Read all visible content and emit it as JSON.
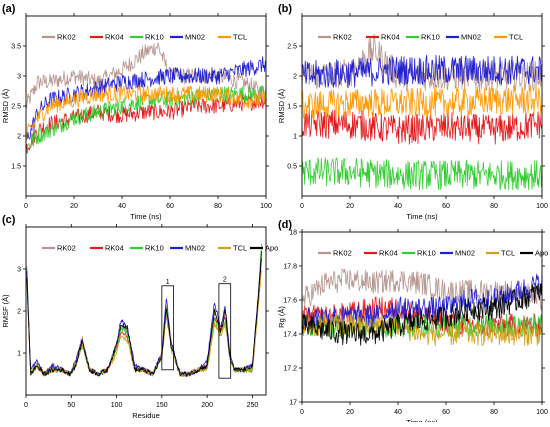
{
  "chart_data": [
    {
      "panel_label": "(a)",
      "type": "line",
      "title": "",
      "xlabel": "Time (ns)",
      "ylabel": "RMSD (Å)",
      "xlim": [
        0,
        100
      ],
      "ylim": [
        1,
        4
      ],
      "xticks": [
        0,
        20,
        40,
        60,
        80,
        100
      ],
      "xtick_labels": [
        "0",
        "20",
        "40",
        "60",
        "80",
        "100"
      ],
      "yticks": [
        1.5,
        2,
        2.5,
        3,
        3.5
      ],
      "ytick_labels": [
        "1.5",
        "2",
        "2.5",
        "3",
        "3.5"
      ],
      "legend_position": "top",
      "noise": 0.14,
      "series": [
        {
          "name": "RK02",
          "color": "#b5958f",
          "x": [
            0,
            5,
            10,
            20,
            30,
            40,
            50,
            55,
            60,
            70,
            80,
            90,
            100
          ],
          "values": [
            2.5,
            2.9,
            2.9,
            3.0,
            2.9,
            3.1,
            3.4,
            3.5,
            3.0,
            3.0,
            3.0,
            2.9,
            2.7
          ]
        },
        {
          "name": "RK04",
          "color": "#e31a1c",
          "x": [
            0,
            5,
            10,
            20,
            30,
            40,
            50,
            60,
            70,
            80,
            90,
            100
          ],
          "values": [
            1.8,
            2.1,
            2.2,
            2.3,
            2.4,
            2.35,
            2.4,
            2.4,
            2.5,
            2.5,
            2.55,
            2.6
          ]
        },
        {
          "name": "RK10",
          "color": "#33cc33",
          "x": [
            0,
            5,
            10,
            20,
            30,
            40,
            50,
            60,
            70,
            80,
            90,
            100
          ],
          "values": [
            1.8,
            2.0,
            2.1,
            2.3,
            2.4,
            2.5,
            2.6,
            2.6,
            2.65,
            2.7,
            2.7,
            2.7
          ]
        },
        {
          "name": "MN02",
          "color": "#1f1fd6",
          "x": [
            0,
            5,
            10,
            20,
            30,
            40,
            50,
            60,
            70,
            80,
            90,
            100
          ],
          "values": [
            1.9,
            2.4,
            2.6,
            2.7,
            2.8,
            2.9,
            2.95,
            3.0,
            3.0,
            3.0,
            3.1,
            3.2
          ]
        },
        {
          "name": "TCL",
          "color": "#ff9900",
          "x": [
            0,
            5,
            10,
            20,
            30,
            40,
            50,
            60,
            70,
            80,
            90,
            100
          ],
          "values": [
            2.0,
            2.3,
            2.5,
            2.6,
            2.7,
            2.7,
            2.7,
            2.7,
            2.7,
            2.7,
            2.6,
            2.6
          ]
        }
      ]
    },
    {
      "panel_label": "(b)",
      "type": "line",
      "title": "",
      "xlabel": "Time (ns)",
      "ylabel": "RMSD (Å)",
      "xlim": [
        0,
        100
      ],
      "ylim": [
        0,
        3
      ],
      "xticks": [
        0,
        20,
        40,
        60,
        80,
        100
      ],
      "xtick_labels": [
        "0",
        "20",
        "40",
        "60",
        "80",
        "100"
      ],
      "yticks": [
        0.5,
        1,
        1.5,
        2,
        2.5
      ],
      "ytick_labels": [
        "0.5",
        "1",
        "1.5",
        "2",
        "2.5"
      ],
      "legend_position": "top",
      "noise": 0.25,
      "series": [
        {
          "name": "RK02",
          "color": "#b5958f",
          "x": [
            0,
            20,
            30,
            40,
            50,
            60,
            80,
            100
          ],
          "values": [
            2.0,
            2.05,
            2.45,
            2.0,
            2.0,
            2.0,
            2.0,
            2.0
          ]
        },
        {
          "name": "RK04",
          "color": "#e31a1c",
          "x": [
            0,
            20,
            40,
            60,
            80,
            100
          ],
          "values": [
            1.2,
            1.2,
            1.1,
            1.15,
            1.1,
            1.2
          ]
        },
        {
          "name": "RK10",
          "color": "#33cc33",
          "x": [
            0,
            20,
            40,
            60,
            80,
            100
          ],
          "values": [
            0.4,
            0.4,
            0.35,
            0.35,
            0.35,
            0.35
          ]
        },
        {
          "name": "MN02",
          "color": "#1f1fd6",
          "x": [
            0,
            20,
            40,
            60,
            80,
            100
          ],
          "values": [
            2.0,
            2.05,
            2.1,
            2.1,
            2.1,
            2.1
          ]
        },
        {
          "name": "TCL",
          "color": "#ff9900",
          "x": [
            0,
            20,
            40,
            60,
            80,
            100
          ],
          "values": [
            1.5,
            1.55,
            1.55,
            1.55,
            1.6,
            1.6
          ]
        }
      ]
    },
    {
      "panel_label": "(c)",
      "type": "line",
      "title": "",
      "xlabel": "Residue",
      "ylabel": "RMSF (Å)",
      "xlim": [
        0,
        265
      ],
      "ylim": [
        0,
        4
      ],
      "xticks": [
        0,
        50,
        100,
        150,
        200,
        250
      ],
      "xtick_labels": [
        "0",
        "50",
        "100",
        "150",
        "200",
        "250"
      ],
      "yticks": [
        1,
        2,
        3
      ],
      "ytick_labels": [
        "1",
        "2",
        "3"
      ],
      "legend_position": "top",
      "noise": 0.06,
      "annotations": [
        "1",
        "2"
      ],
      "series": [
        {
          "name": "RK02",
          "color": "#b5958f",
          "x": [
            1,
            5,
            12,
            20,
            30,
            40,
            48,
            55,
            62,
            70,
            80,
            90,
            100,
            105,
            112,
            120,
            130,
            140,
            150,
            155,
            160,
            170,
            180,
            190,
            200,
            208,
            215,
            220,
            225,
            230,
            240,
            250,
            255,
            260
          ],
          "values": [
            3.0,
            0.6,
            0.8,
            0.5,
            0.7,
            0.6,
            0.5,
            0.8,
            1.4,
            0.6,
            0.5,
            0.6,
            1.2,
            1.6,
            1.5,
            0.7,
            0.6,
            0.5,
            1.0,
            2.2,
            1.3,
            0.5,
            0.5,
            0.6,
            0.7,
            2.0,
            1.6,
            2.1,
            1.0,
            0.6,
            0.6,
            0.7,
            2.0,
            3.4
          ]
        },
        {
          "name": "RK04",
          "color": "#e31a1c",
          "x": [
            1,
            5,
            12,
            20,
            30,
            40,
            48,
            55,
            62,
            70,
            80,
            90,
            100,
            105,
            112,
            120,
            130,
            140,
            150,
            155,
            160,
            170,
            180,
            190,
            200,
            208,
            215,
            220,
            225,
            230,
            240,
            250,
            255,
            260
          ],
          "values": [
            2.8,
            0.5,
            0.7,
            0.5,
            0.6,
            0.6,
            0.5,
            0.7,
            1.3,
            0.6,
            0.5,
            0.6,
            1.1,
            1.5,
            1.4,
            0.6,
            0.6,
            0.5,
            0.9,
            2.0,
            1.2,
            0.5,
            0.5,
            0.6,
            0.7,
            1.9,
            1.5,
            1.9,
            0.9,
            0.6,
            0.6,
            0.6,
            1.8,
            3.2
          ]
        },
        {
          "name": "RK10",
          "color": "#33cc33",
          "x": [
            1,
            5,
            12,
            20,
            30,
            40,
            48,
            55,
            62,
            70,
            80,
            90,
            100,
            105,
            112,
            120,
            130,
            140,
            150,
            155,
            160,
            170,
            180,
            190,
            200,
            208,
            215,
            220,
            225,
            230,
            240,
            250,
            255,
            260
          ],
          "values": [
            3.0,
            0.5,
            0.7,
            0.5,
            0.6,
            0.6,
            0.5,
            0.7,
            1.2,
            0.6,
            0.5,
            0.6,
            1.1,
            1.6,
            1.5,
            0.6,
            0.6,
            0.5,
            0.9,
            2.0,
            1.2,
            0.5,
            0.5,
            0.6,
            0.6,
            1.8,
            1.4,
            1.8,
            0.9,
            0.6,
            0.6,
            0.6,
            1.9,
            3.6
          ]
        },
        {
          "name": "MN02",
          "color": "#1f1fd6",
          "x": [
            1,
            5,
            12,
            20,
            30,
            40,
            48,
            55,
            62,
            70,
            80,
            90,
            100,
            105,
            112,
            120,
            130,
            140,
            150,
            155,
            160,
            170,
            180,
            190,
            200,
            208,
            215,
            220,
            225,
            230,
            240,
            250,
            255,
            260
          ],
          "values": [
            2.9,
            0.6,
            0.8,
            0.5,
            0.7,
            0.6,
            0.5,
            0.8,
            1.3,
            0.6,
            0.5,
            0.6,
            1.2,
            1.8,
            1.6,
            0.7,
            0.6,
            0.5,
            1.0,
            2.3,
            1.3,
            0.5,
            0.5,
            0.6,
            0.8,
            2.2,
            1.6,
            2.1,
            1.0,
            0.6,
            0.6,
            0.7,
            2.0,
            3.3
          ]
        },
        {
          "name": "TCL",
          "color": "#d4a017",
          "x": [
            1,
            5,
            12,
            20,
            30,
            40,
            48,
            55,
            62,
            70,
            80,
            90,
            100,
            105,
            112,
            120,
            130,
            140,
            150,
            155,
            160,
            170,
            180,
            190,
            200,
            208,
            215,
            220,
            225,
            230,
            240,
            250,
            255,
            260
          ],
          "values": [
            2.7,
            0.5,
            0.7,
            0.5,
            0.6,
            0.6,
            0.5,
            0.7,
            1.2,
            0.6,
            0.5,
            0.6,
            1.0,
            1.4,
            1.3,
            0.6,
            0.6,
            0.5,
            0.9,
            1.9,
            1.1,
            0.5,
            0.5,
            0.6,
            0.6,
            1.7,
            1.4,
            1.7,
            0.9,
            0.6,
            0.6,
            0.6,
            1.7,
            3.0
          ]
        },
        {
          "name": "Apo",
          "color": "#000000",
          "x": [
            1,
            5,
            12,
            20,
            30,
            40,
            48,
            55,
            62,
            70,
            80,
            90,
            100,
            105,
            112,
            120,
            130,
            140,
            150,
            155,
            160,
            170,
            180,
            190,
            200,
            208,
            215,
            220,
            225,
            230,
            240,
            250,
            255,
            260
          ],
          "values": [
            2.8,
            0.5,
            0.7,
            0.5,
            0.6,
            0.6,
            0.5,
            0.7,
            1.3,
            0.6,
            0.5,
            0.6,
            1.2,
            1.7,
            1.6,
            0.6,
            0.6,
            0.5,
            0.9,
            2.1,
            1.2,
            0.5,
            0.5,
            0.6,
            0.7,
            2.0,
            1.5,
            2.0,
            0.9,
            0.6,
            0.6,
            0.7,
            1.9,
            3.4
          ]
        }
      ]
    },
    {
      "panel_label": "(d)",
      "type": "line",
      "title": "",
      "xlabel": "Time (ns)",
      "ylabel": "Rg (Å)",
      "xlim": [
        0,
        100
      ],
      "ylim": [
        17,
        18
      ],
      "xticks": [
        0,
        20,
        40,
        60,
        80,
        100
      ],
      "xtick_labels": [
        "0",
        "20",
        "40",
        "60",
        "80",
        "100"
      ],
      "yticks": [
        17,
        17.2,
        17.4,
        17.6,
        17.8,
        18
      ],
      "ytick_labels": [
        "17",
        "17.2",
        "17.4",
        "17.6",
        "17.8",
        "18"
      ],
      "legend_position": "top",
      "noise": 0.07,
      "series": [
        {
          "name": "RK02",
          "color": "#b5958f",
          "x": [
            0,
            10,
            20,
            30,
            40,
            50,
            60,
            70,
            80,
            90,
            100
          ],
          "values": [
            17.6,
            17.7,
            17.72,
            17.7,
            17.72,
            17.7,
            17.65,
            17.65,
            17.65,
            17.65,
            17.6
          ]
        },
        {
          "name": "RK04",
          "color": "#e31a1c",
          "x": [
            0,
            10,
            20,
            30,
            40,
            50,
            60,
            70,
            80,
            90,
            100
          ],
          "values": [
            17.5,
            17.5,
            17.52,
            17.55,
            17.55,
            17.5,
            17.48,
            17.45,
            17.45,
            17.45,
            17.45
          ]
        },
        {
          "name": "RK10",
          "color": "#33cc33",
          "x": [
            0,
            10,
            20,
            30,
            40,
            50,
            60,
            70,
            80,
            90,
            100
          ],
          "values": [
            17.45,
            17.45,
            17.45,
            17.45,
            17.45,
            17.45,
            17.45,
            17.45,
            17.45,
            17.45,
            17.45
          ]
        },
        {
          "name": "MN02",
          "color": "#1f1fd6",
          "x": [
            0,
            10,
            20,
            30,
            40,
            50,
            60,
            70,
            80,
            90,
            100
          ],
          "values": [
            17.5,
            17.5,
            17.5,
            17.5,
            17.55,
            17.55,
            17.55,
            17.6,
            17.6,
            17.65,
            17.7
          ]
        },
        {
          "name": "TCL",
          "color": "#d4a017",
          "x": [
            0,
            10,
            20,
            30,
            40,
            50,
            60,
            70,
            80,
            90,
            100
          ],
          "values": [
            17.45,
            17.45,
            17.45,
            17.45,
            17.45,
            17.4,
            17.4,
            17.4,
            17.4,
            17.4,
            17.4
          ]
        },
        {
          "name": "Apo",
          "color": "#000000",
          "x": [
            0,
            10,
            20,
            30,
            40,
            50,
            60,
            70,
            80,
            90,
            100
          ],
          "values": [
            17.45,
            17.42,
            17.4,
            17.4,
            17.45,
            17.48,
            17.5,
            17.55,
            17.55,
            17.6,
            17.65
          ]
        }
      ]
    }
  ]
}
